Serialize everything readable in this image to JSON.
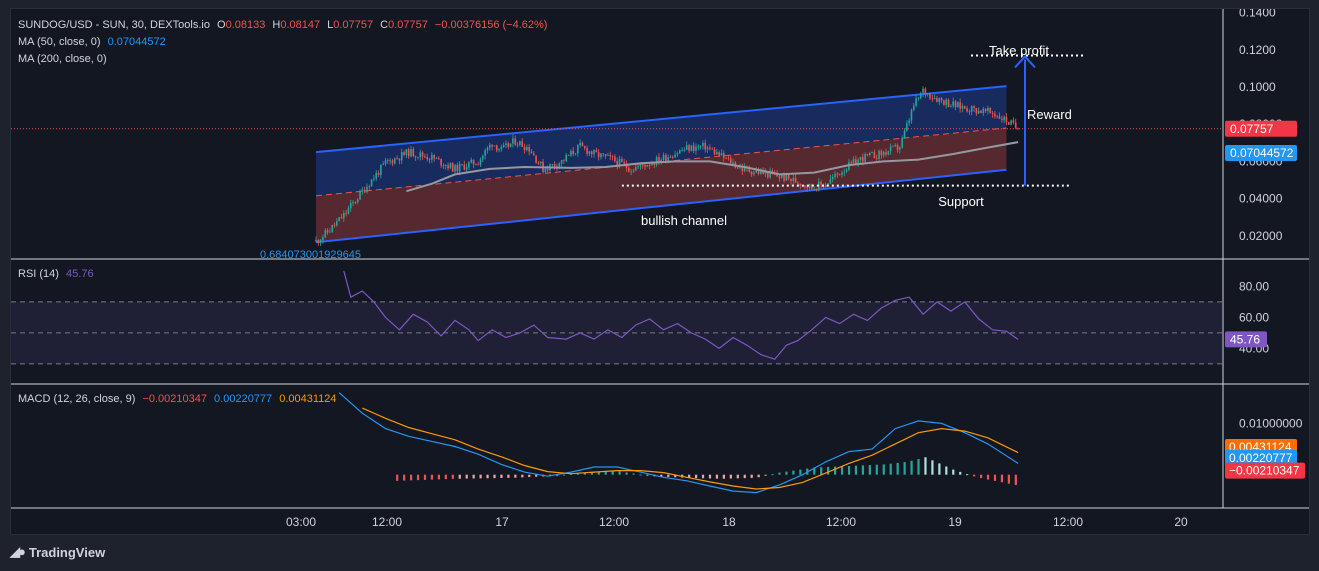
{
  "header": {
    "symbol": "SUNDOG/USD - SUN, 30, DEXTools.io",
    "open_label": "O",
    "open": "0.08133",
    "high_label": "H",
    "high": "0.08147",
    "low_label": "L",
    "low": "0.07757",
    "close_label": "C",
    "close": "0.07757",
    "change": "−0.00376156 (−4.62%)",
    "ma50_label": "MA (50, close, 0)",
    "ma50_value": "0.07044572",
    "ma200_label": "MA (200, close, 0)"
  },
  "rsi_legend": {
    "label": "RSI (14)",
    "value": "45.76"
  },
  "macd_legend": {
    "label": "MACD (12, 26, close, 9)",
    "hist": "−0.00210347",
    "macd": "0.00220777",
    "signal": "0.00431124"
  },
  "brand": {
    "name": "TradingView"
  },
  "annotations": {
    "take_profit": "Take profit",
    "reward": "Reward",
    "support": "Support",
    "channel": "bullish channel",
    "low_value": "0.684073001929645"
  },
  "colors": {
    "up": "#26a69a",
    "down": "#ef5350",
    "ma50": "#2196f3",
    "ma200": "#9598a1",
    "rsi": "#7e57c2",
    "signal": "#ff9800",
    "channel": "#2962ff"
  },
  "chart_data": [
    {
      "type": "candlestick",
      "title": "SUNDOG/USD - SUN, 30, DEXTools.io",
      "x_ticks": [
        "03:00",
        "12:00",
        "17",
        "12:00",
        "18",
        "12:00",
        "19",
        "12:00",
        "20"
      ],
      "y_ticks": [
        "0.1400",
        "0.1200",
        "0.1000",
        "0.08000",
        "0.06000",
        "0.04000",
        "0.02000"
      ],
      "ylim": [
        0.0075,
        0.142
      ],
      "last_price": "0.07757",
      "ma50_last": "0.07044572",
      "close_path": [
        [
          0,
          0.017
        ],
        [
          5,
          0.022
        ],
        [
          12,
          0.031
        ],
        [
          20,
          0.044
        ],
        [
          30,
          0.059
        ],
        [
          40,
          0.065
        ],
        [
          50,
          0.062
        ],
        [
          60,
          0.056
        ],
        [
          70,
          0.06
        ],
        [
          76,
          0.07
        ],
        [
          80,
          0.066
        ],
        [
          86,
          0.071
        ],
        [
          92,
          0.067
        ],
        [
          98,
          0.056
        ],
        [
          106,
          0.06
        ],
        [
          114,
          0.068
        ],
        [
          120,
          0.064
        ],
        [
          128,
          0.061
        ],
        [
          136,
          0.056
        ],
        [
          146,
          0.06
        ],
        [
          154,
          0.064
        ],
        [
          160,
          0.067
        ],
        [
          168,
          0.068
        ],
        [
          176,
          0.062
        ],
        [
          184,
          0.056
        ],
        [
          192,
          0.054
        ],
        [
          200,
          0.052
        ],
        [
          208,
          0.049
        ],
        [
          214,
          0.046
        ],
        [
          220,
          0.048
        ],
        [
          228,
          0.056
        ],
        [
          236,
          0.062
        ],
        [
          244,
          0.064
        ],
        [
          252,
          0.068
        ],
        [
          258,
          0.09
        ],
        [
          262,
          0.098
        ],
        [
          268,
          0.094
        ],
        [
          276,
          0.09
        ],
        [
          284,
          0.088
        ],
        [
          292,
          0.086
        ],
        [
          298,
          0.082
        ],
        [
          303,
          0.0776
        ]
      ],
      "ma50": [
        [
          39,
          0.044
        ],
        [
          50,
          0.048
        ],
        [
          60,
          0.053
        ],
        [
          75,
          0.056
        ],
        [
          90,
          0.057
        ],
        [
          110,
          0.0565
        ],
        [
          125,
          0.057
        ],
        [
          140,
          0.059
        ],
        [
          155,
          0.06
        ],
        [
          170,
          0.06
        ],
        [
          185,
          0.057
        ],
        [
          200,
          0.053
        ],
        [
          215,
          0.054
        ],
        [
          230,
          0.058
        ],
        [
          245,
          0.06
        ],
        [
          260,
          0.061
        ],
        [
          275,
          0.064
        ],
        [
          288,
          0.067
        ],
        [
          303,
          0.0704
        ]
      ],
      "annotations": [
        "bullish channel",
        "Support",
        "Take profit",
        "Reward",
        "0.684073001929645"
      ]
    },
    {
      "type": "line",
      "title": "RSI (14)",
      "y_ticks": [
        "80.00",
        "60.00",
        "40.00"
      ],
      "ylim": [
        17,
        97
      ],
      "bands": [
        30,
        50,
        70
      ],
      "last": "45.76",
      "values": [
        [
          12,
          90
        ],
        [
          15,
          73
        ],
        [
          20,
          77
        ],
        [
          25,
          70
        ],
        [
          30,
          60
        ],
        [
          36,
          52
        ],
        [
          42,
          62
        ],
        [
          48,
          57
        ],
        [
          54,
          48
        ],
        [
          60,
          58
        ],
        [
          66,
          52
        ],
        [
          70,
          45
        ],
        [
          76,
          52
        ],
        [
          82,
          47
        ],
        [
          88,
          50
        ],
        [
          94,
          55
        ],
        [
          100,
          47
        ],
        [
          108,
          46
        ],
        [
          114,
          50
        ],
        [
          120,
          46
        ],
        [
          126,
          52
        ],
        [
          132,
          47
        ],
        [
          138,
          55
        ],
        [
          144,
          59
        ],
        [
          150,
          52
        ],
        [
          156,
          56
        ],
        [
          162,
          50
        ],
        [
          168,
          46
        ],
        [
          174,
          40
        ],
        [
          180,
          47
        ],
        [
          186,
          42
        ],
        [
          192,
          36
        ],
        [
          198,
          33
        ],
        [
          203,
          42
        ],
        [
          208,
          45
        ],
        [
          214,
          52
        ],
        [
          220,
          60
        ],
        [
          226,
          56
        ],
        [
          232,
          62
        ],
        [
          238,
          58
        ],
        [
          244,
          66
        ],
        [
          250,
          71
        ],
        [
          256,
          73
        ],
        [
          262,
          62
        ],
        [
          268,
          70
        ],
        [
          274,
          64
        ],
        [
          280,
          70
        ],
        [
          286,
          59
        ],
        [
          292,
          52
        ],
        [
          298,
          51
        ],
        [
          303,
          45.76
        ]
      ]
    },
    {
      "type": "line",
      "title": "MACD (12, 26, close, 9)",
      "y_ticks": [
        "0.01000000"
      ],
      "ylim": [
        -0.0065,
        0.0175
      ],
      "histogram_last": "−0.00210347",
      "macd_last": "0.00220777",
      "signal_last": "0.00431124",
      "macd": [
        [
          10,
          0.016
        ],
        [
          20,
          0.012
        ],
        [
          30,
          0.009
        ],
        [
          40,
          0.0075
        ],
        [
          50,
          0.0065
        ],
        [
          60,
          0.0055
        ],
        [
          70,
          0.004
        ],
        [
          80,
          0.002
        ],
        [
          90,
          0.0005
        ],
        [
          100,
          -0.0003
        ],
        [
          110,
          0.0005
        ],
        [
          120,
          0.0015
        ],
        [
          130,
          0.0015
        ],
        [
          140,
          0.0005
        ],
        [
          150,
          -0.0005
        ],
        [
          160,
          -0.0012
        ],
        [
          170,
          -0.0022
        ],
        [
          180,
          -0.0032
        ],
        [
          190,
          -0.0035
        ],
        [
          200,
          -0.002
        ],
        [
          210,
          0.0
        ],
        [
          220,
          0.0025
        ],
        [
          230,
          0.0045
        ],
        [
          240,
          0.005
        ],
        [
          250,
          0.009
        ],
        [
          260,
          0.0105
        ],
        [
          270,
          0.01
        ],
        [
          280,
          0.0082
        ],
        [
          290,
          0.006
        ],
        [
          303,
          0.0022
        ]
      ],
      "signal": [
        [
          20,
          0.013
        ],
        [
          30,
          0.011
        ],
        [
          40,
          0.0092
        ],
        [
          50,
          0.008
        ],
        [
          60,
          0.0068
        ],
        [
          70,
          0.005
        ],
        [
          80,
          0.0035
        ],
        [
          90,
          0.0018
        ],
        [
          100,
          0.0006
        ],
        [
          110,
          0.0002
        ],
        [
          120,
          0.0005
        ],
        [
          130,
          0.0008
        ],
        [
          140,
          0.0008
        ],
        [
          150,
          0.0004
        ],
        [
          160,
          -0.0005
        ],
        [
          170,
          -0.0014
        ],
        [
          180,
          -0.0022
        ],
        [
          190,
          -0.0028
        ],
        [
          200,
          -0.0025
        ],
        [
          210,
          -0.0015
        ],
        [
          220,
          0.0003
        ],
        [
          230,
          0.0022
        ],
        [
          240,
          0.0038
        ],
        [
          250,
          0.006
        ],
        [
          260,
          0.0082
        ],
        [
          270,
          0.009
        ],
        [
          280,
          0.0085
        ],
        [
          290,
          0.0072
        ],
        [
          303,
          0.0043
        ]
      ],
      "histogram": [
        [
          35,
          -0.0012
        ],
        [
          60,
          -0.0008
        ],
        [
          85,
          -0.0006
        ],
        [
          100,
          -0.0003
        ],
        [
          115,
          0.0004
        ],
        [
          130,
          0.0007
        ],
        [
          145,
          -0.0003
        ],
        [
          160,
          -0.0006
        ],
        [
          175,
          -0.0008
        ],
        [
          190,
          -0.0006
        ],
        [
          200,
          0.0004
        ],
        [
          215,
          0.0014
        ],
        [
          230,
          0.0017
        ],
        [
          245,
          0.002
        ],
        [
          255,
          0.0025
        ],
        [
          263,
          0.0034
        ],
        [
          275,
          0.001
        ],
        [
          285,
          -0.0005
        ],
        [
          303,
          -0.0021
        ]
      ]
    }
  ]
}
